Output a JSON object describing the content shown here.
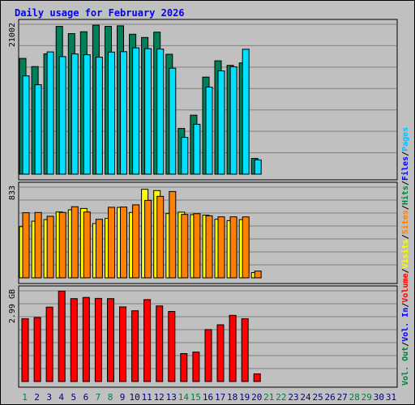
{
  "chart_data": {
    "title": "Daily usage for February 2026",
    "type": "bar",
    "x": [
      "1",
      "2",
      "3",
      "4",
      "5",
      "6",
      "7",
      "8",
      "9",
      "10",
      "11",
      "12",
      "13",
      "14",
      "15",
      "16",
      "17",
      "18",
      "19",
      "20",
      "21",
      "22",
      "23",
      "24",
      "25",
      "26",
      "27",
      "28",
      "29",
      "30",
      "31"
    ],
    "weekend_days": [
      "1",
      "7",
      "8",
      "14",
      "15",
      "21",
      "22",
      "28",
      "29"
    ],
    "panels": [
      {
        "id": "top",
        "ymax_label": "21002",
        "ymax": 21002,
        "legend": [
          {
            "text": "Hits",
            "color": "#008040"
          },
          {
            "text": "Files",
            "color": "#0000ff"
          },
          {
            "text": "Pages",
            "color": "#00c0ff"
          }
        ],
        "series": [
          {
            "name": "Hits",
            "color": "#00805a",
            "values": [
              16220,
              15080,
              16860,
              20710,
              19700,
              19960,
              20880,
              20720,
              20790,
              19600,
              19150,
              19900,
              16800,
              6400,
              8270,
              13600,
              15880,
              15250,
              15590,
              2200,
              0,
              0,
              0,
              0,
              0,
              0,
              0,
              0,
              0,
              0,
              0
            ]
          },
          {
            "name": "Files",
            "color": "#00e0ff",
            "values": [
              13770,
              12530,
              17130,
              16470,
              16850,
              16730,
              16390,
              17110,
              17160,
              17700,
              17590,
              17530,
              14850,
              5150,
              6990,
              12200,
              14480,
              15040,
              17500,
              2000,
              0,
              0,
              0,
              0,
              0,
              0,
              0,
              0,
              0,
              0,
              0
            ]
          }
        ]
      },
      {
        "id": "mid",
        "ymax_label": "833",
        "ymax": 833,
        "legend": [
          {
            "text": "Visits",
            "color": "#ffff00"
          },
          {
            "text": "Sites",
            "color": "#ff8000"
          }
        ],
        "series": [
          {
            "name": "Visits",
            "color": "#ffff00",
            "values": [
              470,
              520,
              535,
              605,
              625,
              637,
              498,
              545,
              647,
              600,
              813,
              801,
              590,
              603,
              580,
              575,
              538,
              525,
              535,
              48,
              0,
              0,
              0,
              0,
              0,
              0,
              0,
              0,
              0,
              0,
              0
            ]
          },
          {
            "name": "Sites",
            "color": "#ff8000",
            "values": [
              598,
              600,
              565,
              600,
              653,
              605,
              538,
              648,
              650,
              670,
              711,
              748,
              793,
              582,
              589,
              570,
              560,
              560,
              559,
              62,
              0,
              0,
              0,
              0,
              0,
              0,
              0,
              0,
              0,
              0,
              0
            ]
          }
        ]
      },
      {
        "id": "bot",
        "ymax_label": "2.99 GB",
        "ymax": 2.99,
        "legend": [
          {
            "text": "Vol. Out",
            "color": "#008040"
          },
          {
            "text": "Vol. In",
            "color": "#0000ff"
          },
          {
            "text": "Volume",
            "color": "#ff0000"
          }
        ],
        "series": [
          {
            "name": "Volume",
            "color": "#ff0000",
            "values": [
              2.07,
              2.11,
              2.45,
              2.98,
              2.73,
              2.77,
              2.74,
              2.73,
              2.46,
              2.33,
              2.7,
              2.49,
              2.31,
              0.92,
              0.97,
              1.71,
              1.87,
              2.18,
              2.07,
              0.25,
              0,
              0,
              0,
              0,
              0,
              0,
              0,
              0,
              0,
              0,
              0
            ]
          }
        ]
      }
    ],
    "grid": true
  }
}
